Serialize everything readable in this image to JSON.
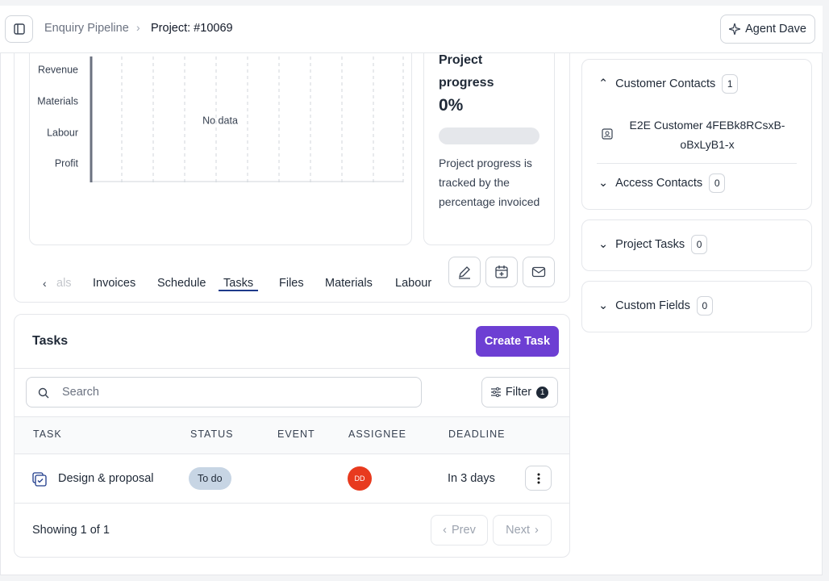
{
  "header": {
    "breadcrumb": [
      "Enquiry Pipeline",
      "Project: #10069"
    ],
    "agent_button": "Agent Dave"
  },
  "chart": {
    "categories": [
      "Revenue",
      "Materials",
      "Labour",
      "Profit"
    ],
    "empty_text": "No data"
  },
  "progress": {
    "title": "Project progress",
    "value": "0%",
    "description": "Project progress is tracked by the percentage invoiced"
  },
  "tabs": {
    "items": [
      "als",
      "Invoices",
      "Schedule",
      "Tasks",
      "Files",
      "Materials",
      "Labour"
    ],
    "active": 3
  },
  "tasks": {
    "title": "Tasks",
    "create_button": "Create Task",
    "search_placeholder": "Search",
    "filter": {
      "label": "Filter",
      "count": 1
    },
    "columns": [
      "TASK",
      "STATUS",
      "EVENT",
      "ASSIGNEE",
      "DEADLINE"
    ],
    "rows": [
      {
        "task": "Design & proposal",
        "status": "To do",
        "assignee": "DD",
        "deadline": "In 3 days"
      }
    ],
    "footer": "Showing 1 of 1",
    "pagination": [
      "Prev",
      "Next"
    ]
  },
  "sidebar": {
    "sections": [
      {
        "title": "Customer Contacts",
        "count": 1,
        "items": [
          "E2E Customer 4FEBk8RCsxB-oBxLyB1-x"
        ]
      },
      {
        "title": "Access Contacts",
        "count": 0
      },
      {
        "title": "Project Tasks",
        "count": 0
      },
      {
        "title": "Custom Fields",
        "count": 0
      }
    ]
  }
}
